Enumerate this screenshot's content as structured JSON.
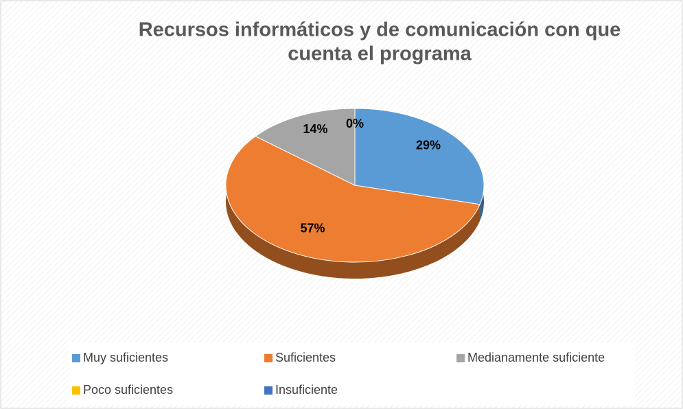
{
  "chart_data": {
    "type": "pie",
    "title": [
      "Recursos informáticos y de comunicación con que",
      "cuenta el programa"
    ],
    "categories": [
      "Muy suficientes",
      "Suficientes",
      "Medianamente suficiente",
      "Poco suficientes",
      "Insuficiente"
    ],
    "values": [
      29,
      57,
      14,
      0,
      0
    ],
    "value_labels": [
      "29%",
      "57%",
      "14%",
      "0%",
      null
    ],
    "colors": [
      "#5b9bd5",
      "#ed7d31",
      "#a5a5a5",
      "#ffc000",
      "#4472c4"
    ],
    "legend": "bottom"
  }
}
